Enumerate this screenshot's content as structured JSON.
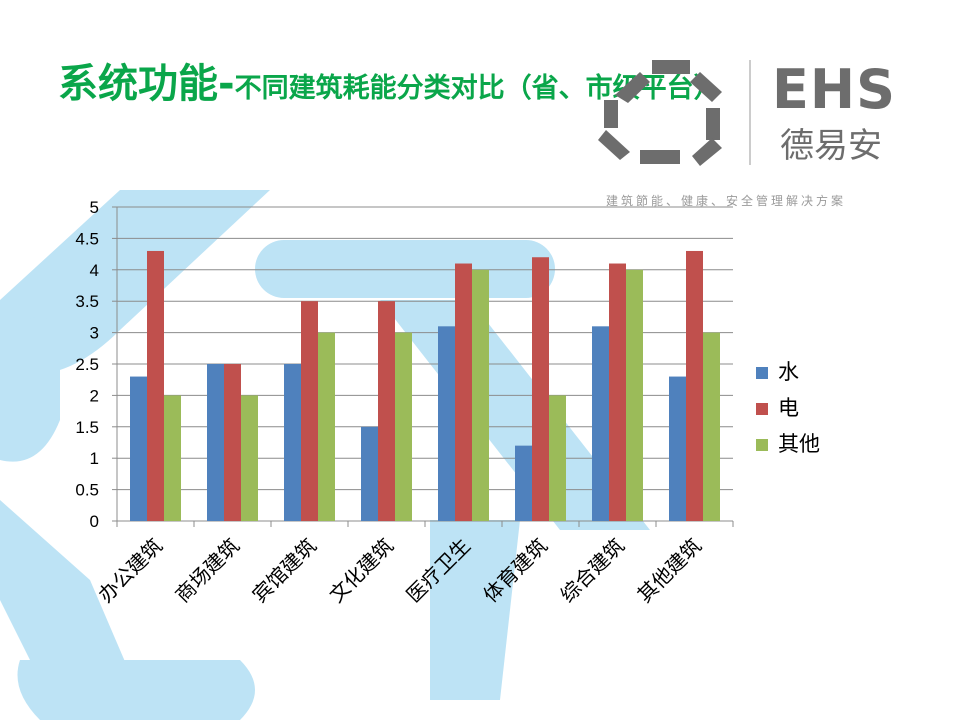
{
  "title": {
    "main": "系统功能-",
    "sub": "不同建筑耗能分类对比（省、市级平台）"
  },
  "brand": {
    "logo_en": "EHS",
    "logo_cn": "德易安",
    "tagline": "建筑節能、健康、安全管理解决方案"
  },
  "colors": {
    "title_green": "#0aa64a",
    "bg_shape": "#bde3f5",
    "logo_gray": "#6d6d6d"
  },
  "chart_data": {
    "type": "bar",
    "categories": [
      "办公建筑",
      "商场建筑",
      "宾馆建筑",
      "文化建筑",
      "医疗卫生",
      "体育建筑",
      "综合建筑",
      "其他建筑"
    ],
    "series": [
      {
        "name": "水",
        "color": "#4f81bd",
        "values": [
          2.3,
          2.5,
          2.5,
          1.5,
          3.1,
          1.2,
          3.1,
          2.3
        ]
      },
      {
        "name": "电",
        "color": "#c0504d",
        "values": [
          4.3,
          2.5,
          3.5,
          3.5,
          4.1,
          4.2,
          4.1,
          4.3
        ]
      },
      {
        "name": "其他",
        "color": "#9bbb59",
        "values": [
          2.0,
          2.0,
          3.0,
          3.0,
          4.0,
          2.0,
          4.0,
          3.0
        ]
      }
    ],
    "ylim": [
      0,
      5
    ],
    "yticks": [
      "0",
      "0.5",
      "1",
      "1.5",
      "2",
      "2.5",
      "3",
      "3.5",
      "4",
      "4.5",
      "5"
    ],
    "grid": true,
    "legend": "right"
  }
}
